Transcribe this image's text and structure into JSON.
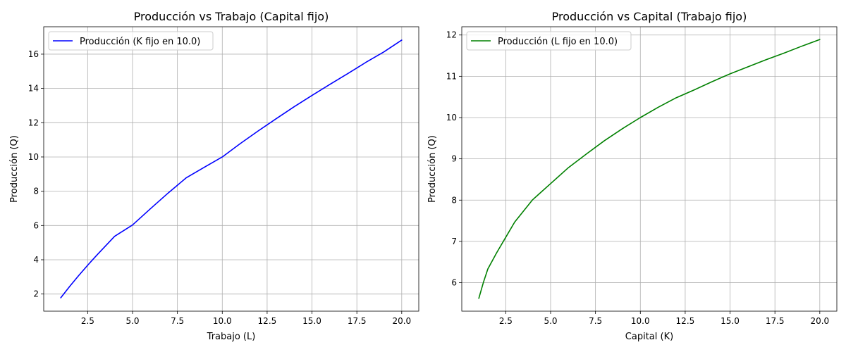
{
  "chart_data": [
    {
      "type": "line",
      "title": "Producción vs Trabajo (Capital fijo)",
      "xlabel": "Trabajo (L)",
      "ylabel": "Producción (Q)",
      "xlim": [
        0.05,
        20.95
      ],
      "ylim": [
        1.0,
        17.6
      ],
      "xticks": [
        2.5,
        5.0,
        7.5,
        10.0,
        12.5,
        15.0,
        17.5,
        20.0
      ],
      "xtick_labels": [
        "2.5",
        "5.0",
        "7.5",
        "10.0",
        "12.5",
        "15.0",
        "17.5",
        "20.0"
      ],
      "yticks": [
        2,
        4,
        6,
        8,
        10,
        12,
        14,
        16
      ],
      "ytick_labels": [
        "2",
        "4",
        "6",
        "8",
        "10",
        "12",
        "14",
        "16"
      ],
      "grid": true,
      "legend_position": "top-left",
      "series": [
        {
          "name": "Producción (K fijo en 10.0)",
          "color": "#0000ff",
          "x": [
            1.0,
            1.5,
            2.0,
            2.5,
            3.0,
            4.0,
            5.0,
            6.0,
            7.0,
            8.0,
            9.0,
            10.0,
            11.0,
            12.0,
            13.0,
            14.0,
            15.0,
            16.0,
            17.0,
            18.0,
            19.0,
            20.0
          ],
          "y": [
            1.78,
            2.45,
            3.08,
            3.68,
            4.26,
            5.37,
            6.03,
            6.98,
            7.91,
            8.79,
            9.4,
            10.0,
            10.78,
            11.52,
            12.23,
            12.93,
            13.59,
            14.24,
            14.87,
            15.52,
            16.13,
            16.82
          ]
        }
      ]
    },
    {
      "type": "line",
      "title": "Producción vs Capital (Trabajo fijo)",
      "xlabel": "Capital (K)",
      "ylabel": "Producción (Q)",
      "xlim": [
        0.05,
        20.95
      ],
      "ylim": [
        5.31,
        12.2
      ],
      "xticks": [
        2.5,
        5.0,
        7.5,
        10.0,
        12.5,
        15.0,
        17.5,
        20.0
      ],
      "xtick_labels": [
        "2.5",
        "5.0",
        "7.5",
        "10.0",
        "12.5",
        "15.0",
        "17.5",
        "20.0"
      ],
      "yticks": [
        6,
        7,
        8,
        9,
        10,
        11,
        12
      ],
      "ytick_labels": [
        "6",
        "7",
        "8",
        "9",
        "10",
        "11",
        "12"
      ],
      "grid": true,
      "legend_position": "top-left",
      "series": [
        {
          "name": "Producción (L fijo en 10.0)",
          "color": "#008000",
          "x": [
            1.0,
            1.25,
            1.5,
            2.0,
            2.5,
            3.0,
            4.0,
            5.0,
            6.0,
            7.0,
            8.0,
            9.0,
            10.0,
            11.0,
            12.0,
            13.0,
            14.0,
            15.0,
            16.0,
            17.0,
            18.0,
            19.0,
            20.0
          ],
          "y": [
            5.62,
            6.0,
            6.33,
            6.73,
            7.1,
            7.47,
            8.01,
            8.4,
            8.79,
            9.12,
            9.44,
            9.73,
            10.0,
            10.25,
            10.48,
            10.67,
            10.87,
            11.06,
            11.23,
            11.4,
            11.56,
            11.73,
            11.89
          ]
        }
      ]
    }
  ]
}
